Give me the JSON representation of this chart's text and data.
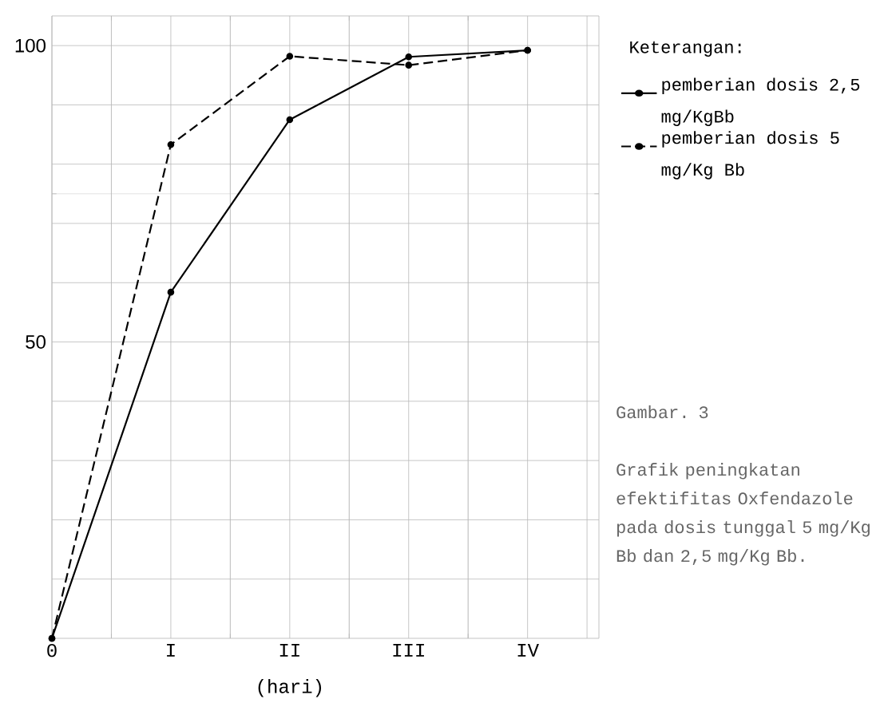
{
  "chart_data": {
    "type": "line",
    "xlabel": "(hari)",
    "legend_title": "Keterangan:",
    "categories": [
      "0",
      "I",
      "II",
      "III",
      "IV"
    ],
    "ylim": [
      0,
      105
    ],
    "yticks": [
      50,
      100
    ],
    "grid": true,
    "legend": "right",
    "marker": "circle",
    "series": [
      {
        "name": "pemberian dosis 2,5 mg/KgBb",
        "color": "#000000",
        "line_style": "solid",
        "values": [
          0,
          58.4,
          87.5,
          98.1,
          99.2
        ]
      },
      {
        "name": "pemberian dosis 5 mg/Kg Bb",
        "color": "#000000",
        "line_style": "dashed",
        "values": [
          0,
          83.3,
          98.2,
          96.7,
          99.2
        ]
      }
    ],
    "annotations": [
      "Gambar. 3",
      "Grafik peningkatan efektifitas Oxfendazole pada dosis tunggal 5 mg/Kg Bb dan 2,5 mg/Kg Bb."
    ]
  }
}
